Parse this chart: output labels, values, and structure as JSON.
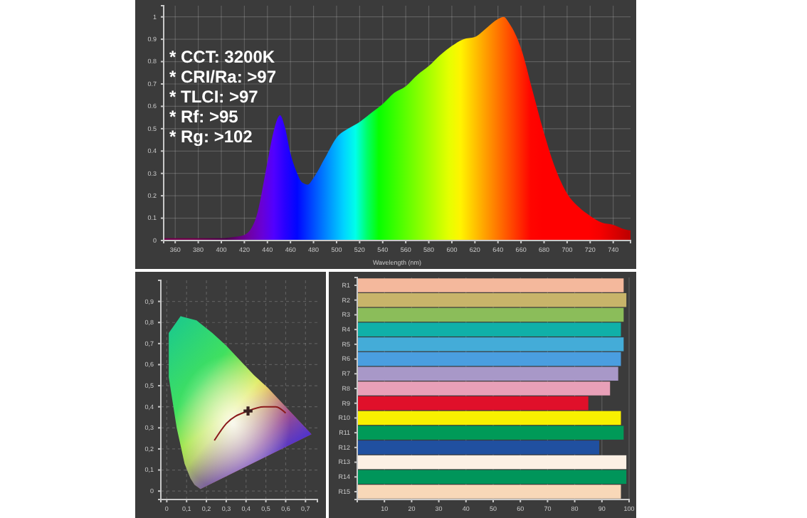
{
  "chart_data": [
    {
      "type": "area",
      "xlabel": "Wavelength (nm)",
      "annotations": [
        "* CCT: 3200K",
        "* CRI/Ra: >97",
        "* TLCI: >97",
        "* Rf: >95",
        "* Rg: >102"
      ],
      "x": [
        350,
        360,
        380,
        400,
        410,
        420,
        430,
        440,
        445,
        451,
        455,
        460,
        465,
        470,
        475,
        480,
        490,
        500,
        510,
        520,
        530,
        540,
        550,
        560,
        570,
        580,
        590,
        600,
        610,
        620,
        630,
        640,
        645,
        650,
        660,
        670,
        680,
        690,
        700,
        710,
        720,
        730,
        740,
        750,
        755
      ],
      "values": [
        0.01,
        0.01,
        0.01,
        0.01,
        0.015,
        0.025,
        0.1,
        0.35,
        0.48,
        0.56,
        0.51,
        0.39,
        0.31,
        0.26,
        0.25,
        0.28,
        0.37,
        0.46,
        0.5,
        0.53,
        0.57,
        0.61,
        0.66,
        0.69,
        0.74,
        0.78,
        0.83,
        0.87,
        0.9,
        0.91,
        0.95,
        0.99,
        1,
        0.97,
        0.86,
        0.67,
        0.48,
        0.32,
        0.21,
        0.15,
        0.11,
        0.08,
        0.07,
        0.05,
        0.045
      ],
      "xlim": [
        350,
        755
      ],
      "ylim": [
        0,
        1.05
      ],
      "xticks": [
        360,
        380,
        400,
        420,
        440,
        460,
        480,
        500,
        520,
        540,
        560,
        580,
        600,
        620,
        640,
        660,
        680,
        700,
        720,
        740
      ],
      "yticks": [
        0,
        0.1,
        0.2,
        0.3,
        0.4,
        0.5,
        0.6,
        0.7,
        0.8,
        0.9,
        1
      ],
      "grid": true
    },
    {
      "type": "scatter",
      "grid": true,
      "xlim": [
        -0.03,
        0.76
      ],
      "ylim": [
        -0.04,
        1.0
      ],
      "xticks": [
        {
          "value": 0,
          "label": "0"
        },
        {
          "value": 0.1,
          "label": "0,1"
        },
        {
          "value": 0.2,
          "label": "0,2"
        },
        {
          "value": 0.3,
          "label": "0,3"
        },
        {
          "value": 0.4,
          "label": "0,4"
        },
        {
          "value": 0.5,
          "label": "0,5"
        },
        {
          "value": 0.6,
          "label": "0,6"
        },
        {
          "value": 0.7,
          "label": "0,7"
        }
      ],
      "yticks": [
        {
          "value": 0,
          "label": "0"
        },
        {
          "value": 0.1,
          "label": "0,1"
        },
        {
          "value": 0.2,
          "label": "0,2"
        },
        {
          "value": 0.3,
          "label": "0,3"
        },
        {
          "value": 0.4,
          "label": "0,4"
        },
        {
          "value": 0.5,
          "label": "0,5"
        },
        {
          "value": 0.6,
          "label": "0,6"
        },
        {
          "value": 0.7,
          "label": "0,7"
        },
        {
          "value": 0.8,
          "label": "0,8"
        },
        {
          "value": 0.9,
          "label": "0,9"
        }
      ],
      "series": [
        {
          "type": "area",
          "x": [
            0.17,
            0.14,
            0.12,
            0.09,
            0.05,
            0.01,
            0.01,
            0.07,
            0.15,
            0.23,
            0.3,
            0.37,
            0.44,
            0.51,
            0.58,
            0.63,
            0.69,
            0.73,
            0.17
          ],
          "values": [
            0.01,
            0.03,
            0.06,
            0.13,
            0.3,
            0.54,
            0.75,
            0.83,
            0.81,
            0.75,
            0.69,
            0.62,
            0.55,
            0.49,
            0.42,
            0.37,
            0.31,
            0.27,
            0.01
          ]
        },
        {
          "type": "line",
          "color": "#8b1a1a",
          "x": [
            0.24,
            0.3,
            0.41,
            0.49,
            0.55,
            0.6
          ],
          "values": [
            0.24,
            0.32,
            0.38,
            0.4,
            0.4,
            0.37
          ]
        },
        {
          "type": "scatter",
          "marker": "cross",
          "color": "#3a2020",
          "x": [
            0.41
          ],
          "values": [
            0.38
          ]
        }
      ]
    },
    {
      "type": "bar",
      "orientation": "horizontal",
      "grid": "x",
      "xlim": [
        0,
        100
      ],
      "xticks": [
        10,
        20,
        30,
        40,
        50,
        60,
        70,
        80,
        90,
        100
      ],
      "categories": [
        "R1",
        "R2",
        "R3",
        "R4",
        "R5",
        "R6",
        "R7",
        "R8",
        "R9",
        "R10",
        "R11",
        "R12",
        "R13",
        "R14",
        "R15"
      ],
      "values": [
        98,
        99,
        98,
        97,
        98,
        97,
        96,
        93,
        85,
        97,
        98,
        89,
        99,
        99,
        97
      ],
      "colors": [
        "#f4b89c",
        "#c8b46a",
        "#8bbd5a",
        "#10b0a8",
        "#44acd8",
        "#4a9ee0",
        "#a898c8",
        "#e8a0b8",
        "#e0102a",
        "#f8f000",
        "#009a58",
        "#2050a0",
        "#fcf0e4",
        "#00955a",
        "#f8d8b8"
      ]
    }
  ]
}
